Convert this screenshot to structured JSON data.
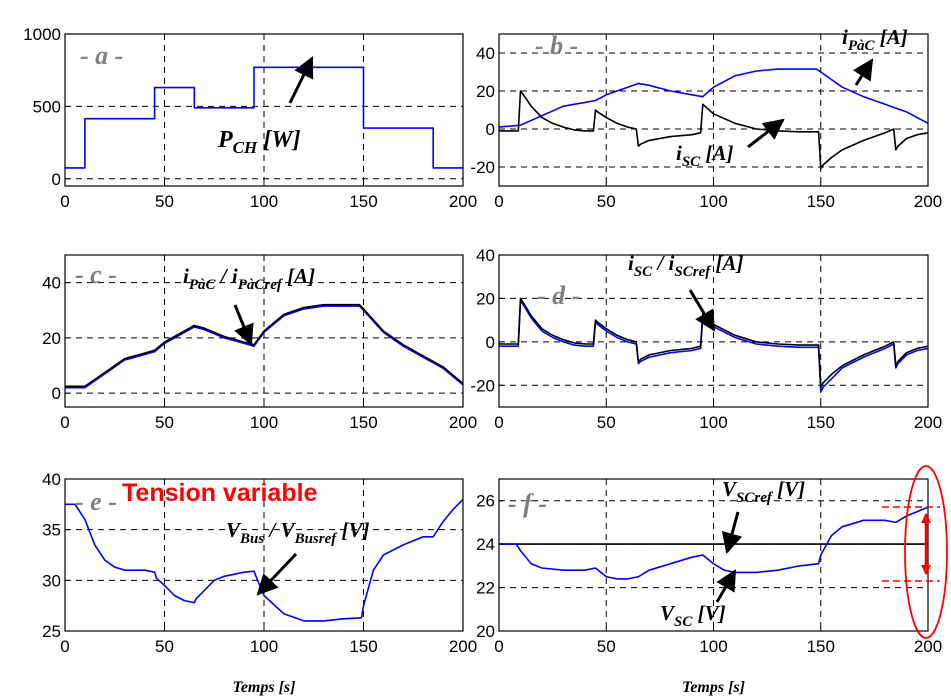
{
  "colors": {
    "blue": "#0000ff",
    "black": "#000000",
    "red": "#ff0000",
    "label_gray": "#808080"
  },
  "chart_data": [
    {
      "id": "a",
      "type": "line",
      "panel_label": "- a -",
      "xlim": [
        0,
        200
      ],
      "ylim": [
        -50,
        1000
      ],
      "xticks": [
        0,
        50,
        100,
        150,
        200
      ],
      "yticks": [
        0,
        500,
        1000
      ],
      "xlabel": "",
      "grid": "dashed",
      "annotations": [
        {
          "main": "P",
          "sub": "CH",
          "rest": " [W]"
        }
      ],
      "series": [
        {
          "color": "#0000ff",
          "x": [
            0,
            10,
            10,
            45,
            45,
            65,
            65,
            95,
            95,
            150,
            150,
            185,
            185,
            200
          ],
          "y": [
            75,
            75,
            415,
            415,
            630,
            630,
            490,
            490,
            770,
            770,
            350,
            350,
            75,
            75
          ]
        }
      ]
    },
    {
      "id": "b",
      "type": "line",
      "panel_label": "- b -",
      "xlim": [
        0,
        200
      ],
      "ylim": [
        -30,
        50
      ],
      "xticks": [
        0,
        50,
        100,
        150,
        200
      ],
      "yticks": [
        -20,
        0,
        20,
        40
      ],
      "xlabel": "",
      "grid": "dashed",
      "annotations": [
        {
          "main": "i",
          "sub": "PàC",
          "rest": " [A]"
        },
        {
          "main": "i",
          "sub": "SC",
          "rest": " [A]"
        }
      ],
      "series": [
        {
          "color": "#0000ff",
          "x": [
            0,
            10,
            20,
            30,
            40,
            45,
            50,
            60,
            65,
            70,
            80,
            90,
            95,
            100,
            110,
            120,
            130,
            140,
            148,
            150,
            160,
            170,
            180,
            185,
            190,
            200
          ],
          "y": [
            1,
            2,
            7,
            12,
            14,
            15,
            18,
            22,
            24,
            23,
            20,
            18,
            17,
            22,
            28,
            30.5,
            31.5,
            31.5,
            31.5,
            30,
            22,
            17,
            13,
            11,
            9,
            3
          ]
        },
        {
          "color": "#000000",
          "x": [
            0,
            9,
            10,
            12,
            15,
            20,
            25,
            30,
            35,
            40,
            44,
            45,
            46,
            50,
            55,
            60,
            64,
            65,
            66,
            70,
            80,
            90,
            94,
            95,
            96,
            100,
            110,
            120,
            130,
            140,
            149,
            150,
            151,
            155,
            160,
            170,
            180,
            184,
            185,
            186,
            190,
            195,
            200
          ],
          "y": [
            -1,
            -1,
            20,
            17,
            12,
            6,
            3,
            1,
            -0.5,
            -1,
            -1,
            10,
            9,
            6,
            3,
            1,
            0,
            -9,
            -8,
            -6,
            -4,
            -3,
            -2,
            13,
            12,
            8,
            3,
            0,
            -1,
            -1.5,
            -1.5,
            -21,
            -19,
            -15,
            -11,
            -6,
            -2,
            0,
            -11,
            -9,
            -5,
            -3,
            -2
          ]
        }
      ]
    },
    {
      "id": "c",
      "type": "line",
      "panel_label": "- c -",
      "xlim": [
        0,
        200
      ],
      "ylim": [
        -5,
        50
      ],
      "xticks": [
        0,
        50,
        100,
        150,
        200
      ],
      "yticks": [
        0,
        20,
        40
      ],
      "xlabel": "",
      "grid": "dashed",
      "annotations": [
        {
          "main": "i",
          "sub": "PàC",
          "mid": " / ",
          "main2": "i",
          "sub2": "PàCref",
          "rest": " [A]"
        }
      ],
      "series": [
        {
          "color": "#0000ff",
          "x": [
            0,
            10,
            20,
            30,
            40,
            45,
            50,
            60,
            65,
            70,
            80,
            90,
            95,
            100,
            110,
            120,
            130,
            140,
            148,
            150,
            160,
            170,
            180,
            185,
            190,
            200
          ],
          "y": [
            2,
            2,
            7,
            12,
            14,
            15,
            18,
            22,
            24,
            23,
            20,
            18,
            17,
            22,
            28,
            30.5,
            31.5,
            31.5,
            31.5,
            30,
            22,
            17,
            13,
            11,
            9,
            3
          ]
        },
        {
          "color": "#000000",
          "x": [
            0,
            10,
            20,
            30,
            40,
            45,
            50,
            60,
            65,
            70,
            80,
            90,
            95,
            100,
            110,
            120,
            130,
            140,
            148,
            150,
            160,
            170,
            180,
            185,
            190,
            200
          ],
          "y": [
            2.5,
            2.5,
            7.5,
            12.5,
            14.5,
            15.5,
            18.5,
            22.5,
            24.5,
            23.5,
            20.5,
            18.5,
            17.5,
            22.5,
            28.5,
            31,
            32,
            32,
            32,
            30.5,
            22.5,
            17.5,
            13.5,
            11.5,
            9.5,
            3.5
          ]
        }
      ]
    },
    {
      "id": "d",
      "type": "line",
      "panel_label": "- d -",
      "xlim": [
        0,
        200
      ],
      "ylim": [
        -30,
        40
      ],
      "xticks": [
        0,
        50,
        100,
        150,
        200
      ],
      "yticks": [
        -20,
        0,
        20,
        40
      ],
      "xlabel": "",
      "grid": "dashed",
      "annotations": [
        {
          "main": "i",
          "sub": "SC",
          "mid": " / ",
          "main2": "i",
          "sub2": "SCref",
          "rest": " [A]"
        }
      ],
      "series": [
        {
          "color": "#0000ff",
          "x": [
            0,
            9,
            10,
            12,
            15,
            20,
            25,
            30,
            35,
            40,
            44,
            45,
            46,
            50,
            55,
            60,
            64,
            65,
            66,
            70,
            80,
            90,
            94,
            95,
            96,
            100,
            110,
            120,
            130,
            140,
            149,
            150,
            151,
            155,
            160,
            170,
            180,
            184,
            185,
            186,
            190,
            195,
            200
          ],
          "y": [
            -2,
            -2,
            19,
            16,
            11,
            5,
            2,
            0,
            -1.5,
            -2,
            -2,
            9,
            8,
            5,
            2,
            0,
            -1,
            -10,
            -9,
            -7,
            -5,
            -4,
            -3,
            12,
            11,
            7,
            2,
            -1,
            -2,
            -2.5,
            -2.5,
            -23,
            -21,
            -17,
            -12,
            -7,
            -3,
            -1,
            -12,
            -10,
            -6,
            -4,
            -3
          ]
        },
        {
          "color": "#000000",
          "x": [
            0,
            9,
            10,
            12,
            15,
            20,
            25,
            30,
            35,
            40,
            44,
            45,
            46,
            50,
            55,
            60,
            64,
            65,
            66,
            70,
            80,
            90,
            94,
            95,
            96,
            100,
            110,
            120,
            130,
            140,
            149,
            150,
            151,
            155,
            160,
            170,
            180,
            184,
            185,
            186,
            190,
            195,
            200
          ],
          "y": [
            -1,
            -1,
            20,
            17,
            12,
            6,
            3,
            1,
            -0.5,
            -1,
            -1,
            10,
            9,
            6,
            3,
            1,
            0,
            -9,
            -8,
            -6,
            -4,
            -3,
            -2,
            13,
            12,
            8,
            3,
            0,
            -1,
            -1.5,
            -1.5,
            -21,
            -19,
            -15,
            -11,
            -6,
            -2,
            0,
            -11,
            -9,
            -5,
            -3,
            -2
          ]
        }
      ]
    },
    {
      "id": "e",
      "type": "line",
      "panel_label": "- e -",
      "xlim": [
        0,
        200
      ],
      "ylim": [
        25,
        40
      ],
      "xticks": [
        0,
        50,
        100,
        150,
        200
      ],
      "yticks": [
        25,
        30,
        35,
        40
      ],
      "xlabel": "Temps [s]",
      "grid": "dashed",
      "title_text": "Tension variable",
      "annotations": [
        {
          "main": "V",
          "sub": "Bus",
          "mid": " / ",
          "main2": "V",
          "sub2": "Busref",
          "rest": " [V]"
        }
      ],
      "series": [
        {
          "color": "#0000ff",
          "x": [
            0,
            5,
            10,
            15,
            20,
            25,
            30,
            40,
            45,
            46,
            50,
            55,
            60,
            65,
            66,
            70,
            75,
            80,
            90,
            95,
            96,
            100,
            110,
            120,
            130,
            140,
            149,
            150,
            155,
            160,
            170,
            180,
            185,
            190,
            195,
            200
          ],
          "y": [
            37.5,
            37.5,
            36,
            33.5,
            32,
            31.3,
            31,
            31,
            30.8,
            30.2,
            29.5,
            28.5,
            28,
            27.8,
            28.2,
            29,
            30,
            30.4,
            30.8,
            30.9,
            30.4,
            28.5,
            26.7,
            26,
            26,
            26.2,
            26.3,
            27.5,
            31,
            32.5,
            33.5,
            34.3,
            34.3,
            35.8,
            37,
            38
          ]
        }
      ]
    },
    {
      "id": "f",
      "type": "line",
      "panel_label": "- f -",
      "xlim": [
        0,
        200
      ],
      "ylim": [
        20,
        27
      ],
      "xticks": [
        0,
        50,
        100,
        150,
        200
      ],
      "yticks": [
        20,
        22,
        24,
        26
      ],
      "xlabel": "Temps [s]",
      "grid": "dashed",
      "annotations": [
        {
          "main": "V",
          "sub": "SCref",
          "rest": " [V]"
        },
        {
          "main": "V",
          "sub": "SC",
          "rest": " [V]"
        }
      ],
      "series": [
        {
          "color": "#000000",
          "x": [
            0,
            200
          ],
          "y": [
            24,
            24
          ]
        },
        {
          "color": "#0000ff",
          "x": [
            0,
            8,
            10,
            15,
            20,
            30,
            40,
            45,
            50,
            55,
            60,
            65,
            70,
            80,
            90,
            95,
            100,
            105,
            110,
            120,
            130,
            140,
            149,
            150,
            155,
            160,
            170,
            180,
            185,
            190,
            195,
            200
          ],
          "y": [
            24,
            24,
            23.7,
            23.1,
            22.9,
            22.8,
            22.8,
            22.9,
            22.5,
            22.4,
            22.4,
            22.5,
            22.8,
            23.1,
            23.4,
            23.5,
            23.1,
            22.8,
            22.7,
            22.7,
            22.8,
            23,
            23.1,
            23.5,
            24.4,
            24.8,
            25.1,
            25.1,
            25,
            25.3,
            25.5,
            25.7
          ]
        }
      ]
    }
  ]
}
